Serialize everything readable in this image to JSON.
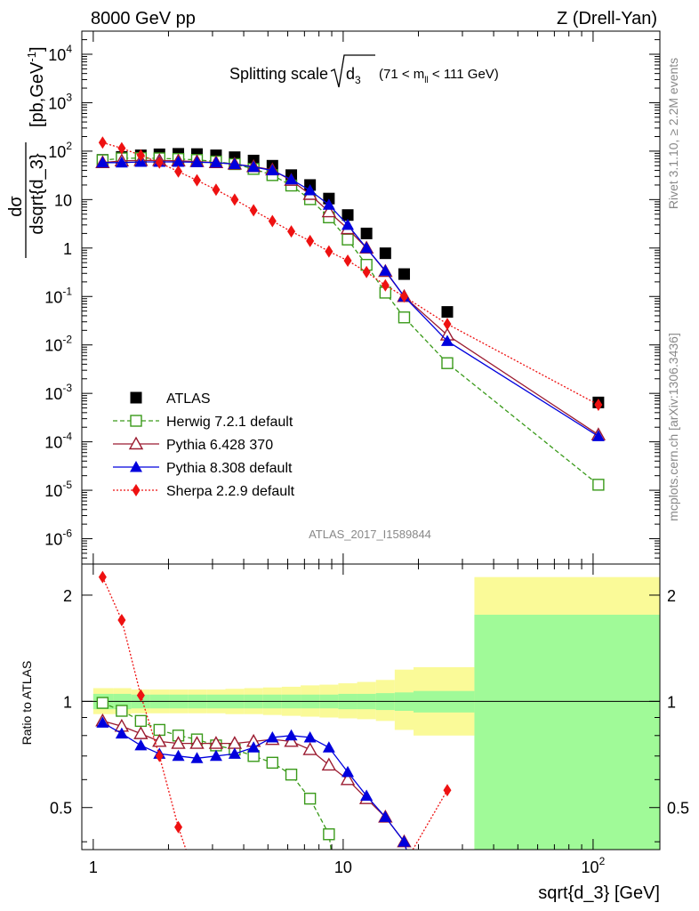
{
  "header": {
    "left": "8000 GeV pp",
    "right": "Z (Drell-Yan)"
  },
  "side_labels": {
    "rivet": "Rivet 3.1.10, ≥ 2.2M events",
    "mcplots": "mcplots.cern.ch [arXiv:1306.3436]"
  },
  "chart_data": [
    {
      "type": "scatter",
      "panel": "main",
      "title": "Splitting scale √d₃ (71 < mₗₗ < 111 GeV)",
      "title_main": "Splitting scale",
      "title_root": "d",
      "title_root_sub": "3",
      "title_range_pre": "(71 < m",
      "title_range_sub": "ll",
      "title_range_post": " < 111 GeV)",
      "ylabel": "dσ / dsqrt{d_3} [pb,GeV⁻¹]",
      "ylabel_num": "dσ",
      "ylabel_den": "dsqrt{d_3}",
      "ylabel_unit": "[pb,GeV",
      "ylabel_unit_sup": "-1",
      "ylabel_unit_end": "]",
      "watermark": "ATLAS_2017_I1589844",
      "x_scale": "log",
      "y_scale": "log",
      "xlim": [
        0.9,
        185
      ],
      "ylim": [
        3e-07,
        30000
      ],
      "y_tick_labels": [
        {
          "base": "10",
          "exp": "-6"
        },
        {
          "base": "10",
          "exp": "-5"
        },
        {
          "base": "10",
          "exp": "-4"
        },
        {
          "base": "10",
          "exp": "-3"
        },
        {
          "base": "10",
          "exp": "-2"
        },
        {
          "base": "10",
          "exp": "-1"
        },
        {
          "base": "1",
          "exp": ""
        },
        {
          "base": "10",
          "exp": ""
        },
        {
          "base": "10",
          "exp": "2"
        },
        {
          "base": "10",
          "exp": "3"
        },
        {
          "base": "10",
          "exp": "4"
        }
      ],
      "legend_position": "lower-left",
      "series": [
        {
          "name": "ATLAS",
          "marker": "square-filled",
          "color": "#000000",
          "x": [
            1.09,
            1.3,
            1.55,
            1.84,
            2.19,
            2.6,
            3.1,
            3.68,
            4.38,
            5.21,
            6.2,
            7.37,
            8.77,
            10.43,
            12.4,
            14.75,
            17.54,
            26.1,
            105.0
          ],
          "y": [
            66,
            76,
            82,
            86,
            88,
            87,
            82,
            75,
            64,
            50,
            32,
            20,
            10.5,
            4.8,
            2.0,
            0.78,
            0.29,
            0.048,
            0.00065
          ]
        },
        {
          "name": "Herwig 7.2.1 default",
          "marker": "square-open",
          "line": "dashed",
          "color": "#3a9a1a",
          "x": [
            1.09,
            1.3,
            1.55,
            1.84,
            2.19,
            2.6,
            3.1,
            3.68,
            4.38,
            5.21,
            6.2,
            7.37,
            8.77,
            10.43,
            12.4,
            14.75,
            17.54,
            26.1,
            105.0
          ],
          "y": [
            65,
            71,
            72,
            71,
            69,
            66,
            61,
            54,
            43,
            32,
            19.5,
            10.2,
            4.3,
            1.5,
            0.45,
            0.12,
            0.037,
            0.0042,
            1.3e-05
          ]
        },
        {
          "name": "Pythia 6.428 370",
          "marker": "triangle-open",
          "line": "solid",
          "color": "#9b1b30",
          "x": [
            1.09,
            1.3,
            1.55,
            1.84,
            2.19,
            2.6,
            3.1,
            3.68,
            4.38,
            5.21,
            6.2,
            7.37,
            8.77,
            10.43,
            12.4,
            14.75,
            17.54,
            26.1,
            105.0
          ],
          "y": [
            58,
            63,
            64,
            64,
            63,
            61,
            58,
            54,
            48,
            41,
            25,
            12.8,
            5.6,
            2.5,
            1.0,
            0.33,
            0.1,
            0.016,
            0.00014
          ]
        },
        {
          "name": "Pythia 8.308 default",
          "marker": "triangle-filled",
          "line": "solid",
          "color": "#0000dd",
          "x": [
            1.09,
            1.3,
            1.55,
            1.84,
            2.19,
            2.6,
            3.1,
            3.68,
            4.38,
            5.21,
            6.2,
            7.37,
            8.77,
            10.43,
            12.4,
            14.75,
            17.54,
            26.1,
            105.0
          ],
          "y": [
            58,
            58,
            60,
            60,
            60,
            59,
            58,
            54,
            47,
            40,
            26,
            15.5,
            7.8,
            3.0,
            1.0,
            0.34,
            0.1,
            0.012,
            0.00013
          ]
        },
        {
          "name": "Sherpa 2.2.9 default",
          "marker": "diamond-filled",
          "line": "dotted",
          "color": "#ee1111",
          "x": [
            1.09,
            1.3,
            1.55,
            1.84,
            2.19,
            2.6,
            3.1,
            3.68,
            4.38,
            5.21,
            6.2,
            7.37,
            8.77,
            10.43,
            12.4,
            14.75,
            17.54,
            26.1,
            105.0
          ],
          "y": [
            150,
            115,
            82,
            58,
            38,
            25,
            16,
            10,
            6.0,
            3.6,
            2.2,
            1.4,
            0.85,
            0.55,
            0.32,
            0.17,
            0.1,
            0.027,
            0.00058
          ]
        }
      ]
    },
    {
      "type": "scatter",
      "panel": "ratio",
      "ylabel": "Ratio to ATLAS",
      "xlabel": "sqrt{d_3} [GeV]",
      "x_scale": "log",
      "y_scale": "log",
      "xlim": [
        0.9,
        185
      ],
      "ylim": [
        0.38,
        2.45
      ],
      "x_tick_labels": [
        {
          "value": 1,
          "base": "1",
          "exp": ""
        },
        {
          "value": 10,
          "base": "10",
          "exp": ""
        },
        {
          "value": 100,
          "base": "10",
          "exp": "2"
        }
      ],
      "y_tick_labels": [
        "0.5",
        "1",
        "2"
      ],
      "reference_line": 1,
      "bands": {
        "inner_color": "#a0fa98",
        "outer_color": "#fafa98",
        "bins": [
          {
            "x0": 1.0,
            "x1": 1.2,
            "inner": [
              0.95,
              1.05
            ],
            "outer": [
              0.92,
              1.09
            ]
          },
          {
            "x0": 1.2,
            "x1": 1.42,
            "inner": [
              0.95,
              1.05
            ],
            "outer": [
              0.92,
              1.09
            ]
          },
          {
            "x0": 1.42,
            "x1": 1.69,
            "inner": [
              0.955,
              1.045
            ],
            "outer": [
              0.925,
              1.08
            ]
          },
          {
            "x0": 1.69,
            "x1": 2.01,
            "inner": [
              0.955,
              1.045
            ],
            "outer": [
              0.925,
              1.08
            ]
          },
          {
            "x0": 2.01,
            "x1": 2.39,
            "inner": [
              0.955,
              1.045
            ],
            "outer": [
              0.925,
              1.08
            ]
          },
          {
            "x0": 2.39,
            "x1": 2.84,
            "inner": [
              0.955,
              1.045
            ],
            "outer": [
              0.925,
              1.08
            ]
          },
          {
            "x0": 2.84,
            "x1": 3.38,
            "inner": [
              0.955,
              1.045
            ],
            "outer": [
              0.925,
              1.08
            ]
          },
          {
            "x0": 3.38,
            "x1": 4.02,
            "inner": [
              0.955,
              1.045
            ],
            "outer": [
              0.92,
              1.085
            ]
          },
          {
            "x0": 4.02,
            "x1": 4.78,
            "inner": [
              0.955,
              1.045
            ],
            "outer": [
              0.92,
              1.09
            ]
          },
          {
            "x0": 4.78,
            "x1": 5.68,
            "inner": [
              0.955,
              1.045
            ],
            "outer": [
              0.915,
              1.095
            ]
          },
          {
            "x0": 5.68,
            "x1": 6.76,
            "inner": [
              0.955,
              1.045
            ],
            "outer": [
              0.91,
              1.1
            ]
          },
          {
            "x0": 6.76,
            "x1": 8.04,
            "inner": [
              0.955,
              1.045
            ],
            "outer": [
              0.905,
              1.11
            ]
          },
          {
            "x0": 8.04,
            "x1": 9.56,
            "inner": [
              0.955,
              1.045
            ],
            "outer": [
              0.9,
              1.115
            ]
          },
          {
            "x0": 9.56,
            "x1": 11.37,
            "inner": [
              0.95,
              1.05
            ],
            "outer": [
              0.895,
              1.125
            ]
          },
          {
            "x0": 11.37,
            "x1": 13.52,
            "inner": [
              0.95,
              1.05
            ],
            "outer": [
              0.89,
              1.135
            ]
          },
          {
            "x0": 13.52,
            "x1": 16.08,
            "inner": [
              0.945,
              1.055
            ],
            "outer": [
              0.88,
              1.15
            ]
          },
          {
            "x0": 16.08,
            "x1": 19.12,
            "inner": [
              0.94,
              1.06
            ],
            "outer": [
              0.83,
              1.23
            ]
          },
          {
            "x0": 19.12,
            "x1": 33.5,
            "inner": [
              0.93,
              1.07
            ],
            "outer": [
              0.8,
              1.25
            ]
          },
          {
            "x0": 33.5,
            "x1": 185.0,
            "inner": [
              0.38,
              1.76
            ],
            "outer": [
              0.38,
              2.25
            ]
          }
        ]
      },
      "series": [
        {
          "name": "Herwig 7.2.1 default",
          "x": [
            1.09,
            1.3,
            1.55,
            1.84,
            2.19,
            2.6,
            3.1,
            3.68,
            4.38,
            5.21,
            6.2,
            7.37,
            8.77
          ],
          "y": [
            0.99,
            0.94,
            0.88,
            0.83,
            0.8,
            0.78,
            0.75,
            0.73,
            0.7,
            0.67,
            0.62,
            0.53,
            0.42
          ]
        },
        {
          "name": "Pythia 6.428 370",
          "x": [
            1.09,
            1.3,
            1.55,
            1.84,
            2.19,
            2.6,
            3.1,
            3.68,
            4.38,
            5.21,
            6.2,
            7.37,
            8.77,
            10.43,
            12.4,
            14.75,
            17.54
          ],
          "y": [
            0.88,
            0.85,
            0.81,
            0.77,
            0.76,
            0.76,
            0.76,
            0.76,
            0.77,
            0.78,
            0.77,
            0.73,
            0.66,
            0.6,
            0.53,
            0.47,
            0.4
          ]
        },
        {
          "name": "Pythia 8.308 default",
          "x": [
            1.09,
            1.3,
            1.55,
            1.84,
            2.19,
            2.6,
            3.1,
            3.68,
            4.38,
            5.21,
            6.2,
            7.37,
            8.77,
            10.43,
            12.4,
            14.75,
            17.54
          ],
          "y": [
            0.87,
            0.81,
            0.75,
            0.71,
            0.7,
            0.69,
            0.7,
            0.71,
            0.74,
            0.79,
            0.8,
            0.79,
            0.74,
            0.63,
            0.54,
            0.47,
            0.4
          ]
        },
        {
          "name": "Sherpa 2.2.9 default",
          "x": [
            1.09,
            1.3,
            1.55,
            1.84,
            2.19,
            26.1
          ],
          "y": [
            2.25,
            1.7,
            1.04,
            0.7,
            0.44,
            0.56
          ]
        }
      ]
    }
  ]
}
